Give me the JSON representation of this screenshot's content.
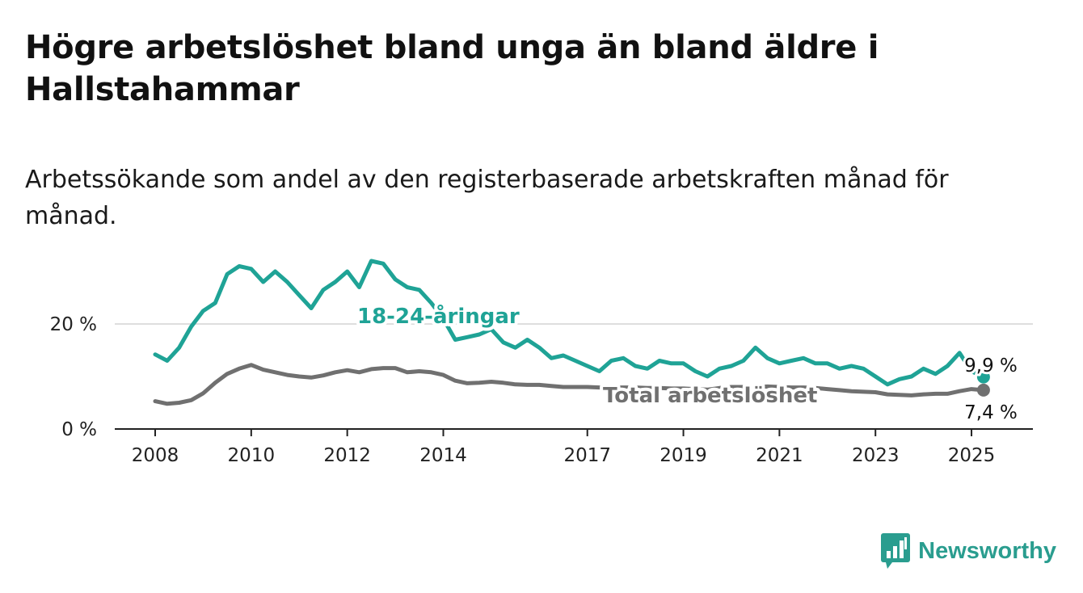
{
  "title": "Högre arbetslöshet bland unga än bland äldre i Hallstahammar",
  "subtitle": "Arbetssökande som andel av den registerbaserade arbetskraften månad för månad.",
  "brand": {
    "name": "Newsworthy",
    "icon": "newsworthy-logo-icon",
    "color": "#2a9d8f"
  },
  "chart_data": {
    "type": "line",
    "title": "Högre arbetslöshet bland unga än bland äldre i Hallstahammar",
    "subtitle": "Arbetssökande som andel av den registerbaserade arbetskraften månad för månad.",
    "xlabel": "",
    "ylabel": "",
    "xlim": [
      2008.0,
      2026.2
    ],
    "ylim": [
      0,
      34
    ],
    "x_ticks": [
      2008,
      2010,
      2012,
      2014,
      2017,
      2019,
      2021,
      2023,
      2025
    ],
    "x_tick_labels": [
      "2008",
      "2010",
      "2012",
      "2014",
      "2017",
      "2019",
      "2021",
      "2023",
      "2025"
    ],
    "y_ticks": [
      0,
      20
    ],
    "y_tick_labels": [
      "0 %",
      "20 %"
    ],
    "grid": "horizontal",
    "legend": "inline labels",
    "series": [
      {
        "name": "18-24-åringar",
        "color": "#1fa396",
        "end_label": "9,9 %",
        "x": [
          2008.0,
          2008.25,
          2008.5,
          2008.75,
          2009.0,
          2009.25,
          2009.5,
          2009.75,
          2010.0,
          2010.25,
          2010.5,
          2010.75,
          2011.0,
          2011.25,
          2011.5,
          2011.75,
          2012.0,
          2012.25,
          2012.5,
          2012.75,
          2013.0,
          2013.25,
          2013.5,
          2013.75,
          2014.0,
          2014.25,
          2014.5,
          2014.75,
          2015.0,
          2015.25,
          2015.5,
          2015.75,
          2016.0,
          2016.25,
          2016.5,
          2016.75,
          2017.0,
          2017.25,
          2017.5,
          2017.75,
          2018.0,
          2018.25,
          2018.5,
          2018.75,
          2019.0,
          2019.25,
          2019.5,
          2019.75,
          2020.0,
          2020.25,
          2020.5,
          2020.75,
          2021.0,
          2021.25,
          2021.5,
          2021.75,
          2022.0,
          2022.25,
          2022.5,
          2022.75,
          2023.0,
          2023.25,
          2023.5,
          2023.75,
          2024.0,
          2024.25,
          2024.5,
          2024.75,
          2025.0,
          2025.25
        ],
        "values": [
          14.2,
          13.0,
          15.5,
          19.5,
          22.5,
          24.0,
          29.5,
          31.0,
          30.5,
          28.0,
          30.0,
          28.0,
          25.5,
          23.0,
          26.5,
          28.0,
          30.0,
          27.0,
          32.0,
          31.5,
          28.5,
          27.0,
          26.5,
          24.0,
          21.0,
          17.0,
          17.5,
          18.0,
          19.0,
          16.5,
          15.5,
          17.0,
          15.5,
          13.5,
          14.0,
          13.0,
          12.0,
          11.0,
          13.0,
          13.5,
          12.0,
          11.5,
          13.0,
          12.5,
          12.5,
          11.0,
          10.0,
          11.5,
          12.0,
          13.0,
          15.5,
          13.5,
          12.5,
          13.0,
          13.5,
          12.5,
          12.5,
          11.5,
          12.0,
          11.5,
          10.0,
          8.5,
          9.5,
          10.0,
          11.5,
          10.5,
          12.0,
          14.5,
          11.0,
          9.9
        ]
      },
      {
        "name": "Total arbetslöshet",
        "color": "#707070",
        "end_label": "7,4 %",
        "x": [
          2008.0,
          2008.25,
          2008.5,
          2008.75,
          2009.0,
          2009.25,
          2009.5,
          2009.75,
          2010.0,
          2010.25,
          2010.5,
          2010.75,
          2011.0,
          2011.25,
          2011.5,
          2011.75,
          2012.0,
          2012.25,
          2012.5,
          2012.75,
          2013.0,
          2013.25,
          2013.5,
          2013.75,
          2014.0,
          2014.25,
          2014.5,
          2014.75,
          2015.0,
          2015.25,
          2015.5,
          2015.75,
          2016.0,
          2016.25,
          2016.5,
          2016.75,
          2017.0,
          2017.25,
          2017.5,
          2017.75,
          2018.0,
          2018.25,
          2018.5,
          2018.75,
          2019.0,
          2019.25,
          2019.5,
          2019.75,
          2020.0,
          2020.25,
          2020.5,
          2020.75,
          2021.0,
          2021.25,
          2021.5,
          2021.75,
          2022.0,
          2022.25,
          2022.5,
          2022.75,
          2023.0,
          2023.25,
          2023.5,
          2023.75,
          2024.0,
          2024.25,
          2024.5,
          2024.75,
          2025.0,
          2025.25
        ],
        "values": [
          5.3,
          4.8,
          5.0,
          5.5,
          6.8,
          8.8,
          10.5,
          11.5,
          12.2,
          11.3,
          10.8,
          10.3,
          10.0,
          9.8,
          10.2,
          10.8,
          11.2,
          10.8,
          11.4,
          11.6,
          11.6,
          10.8,
          11.0,
          10.8,
          10.3,
          9.2,
          8.7,
          8.8,
          9.0,
          8.8,
          8.5,
          8.4,
          8.4,
          8.2,
          8.0,
          8.0,
          8.0,
          7.9,
          7.9,
          7.9,
          7.9,
          7.8,
          7.8,
          7.7,
          7.7,
          7.6,
          7.5,
          7.8,
          8.0,
          8.0,
          8.0,
          8.1,
          8.0,
          7.9,
          7.9,
          7.8,
          7.6,
          7.4,
          7.2,
          7.1,
          7.0,
          6.6,
          6.5,
          6.4,
          6.6,
          6.7,
          6.7,
          7.2,
          7.6,
          7.4
        ]
      }
    ]
  }
}
